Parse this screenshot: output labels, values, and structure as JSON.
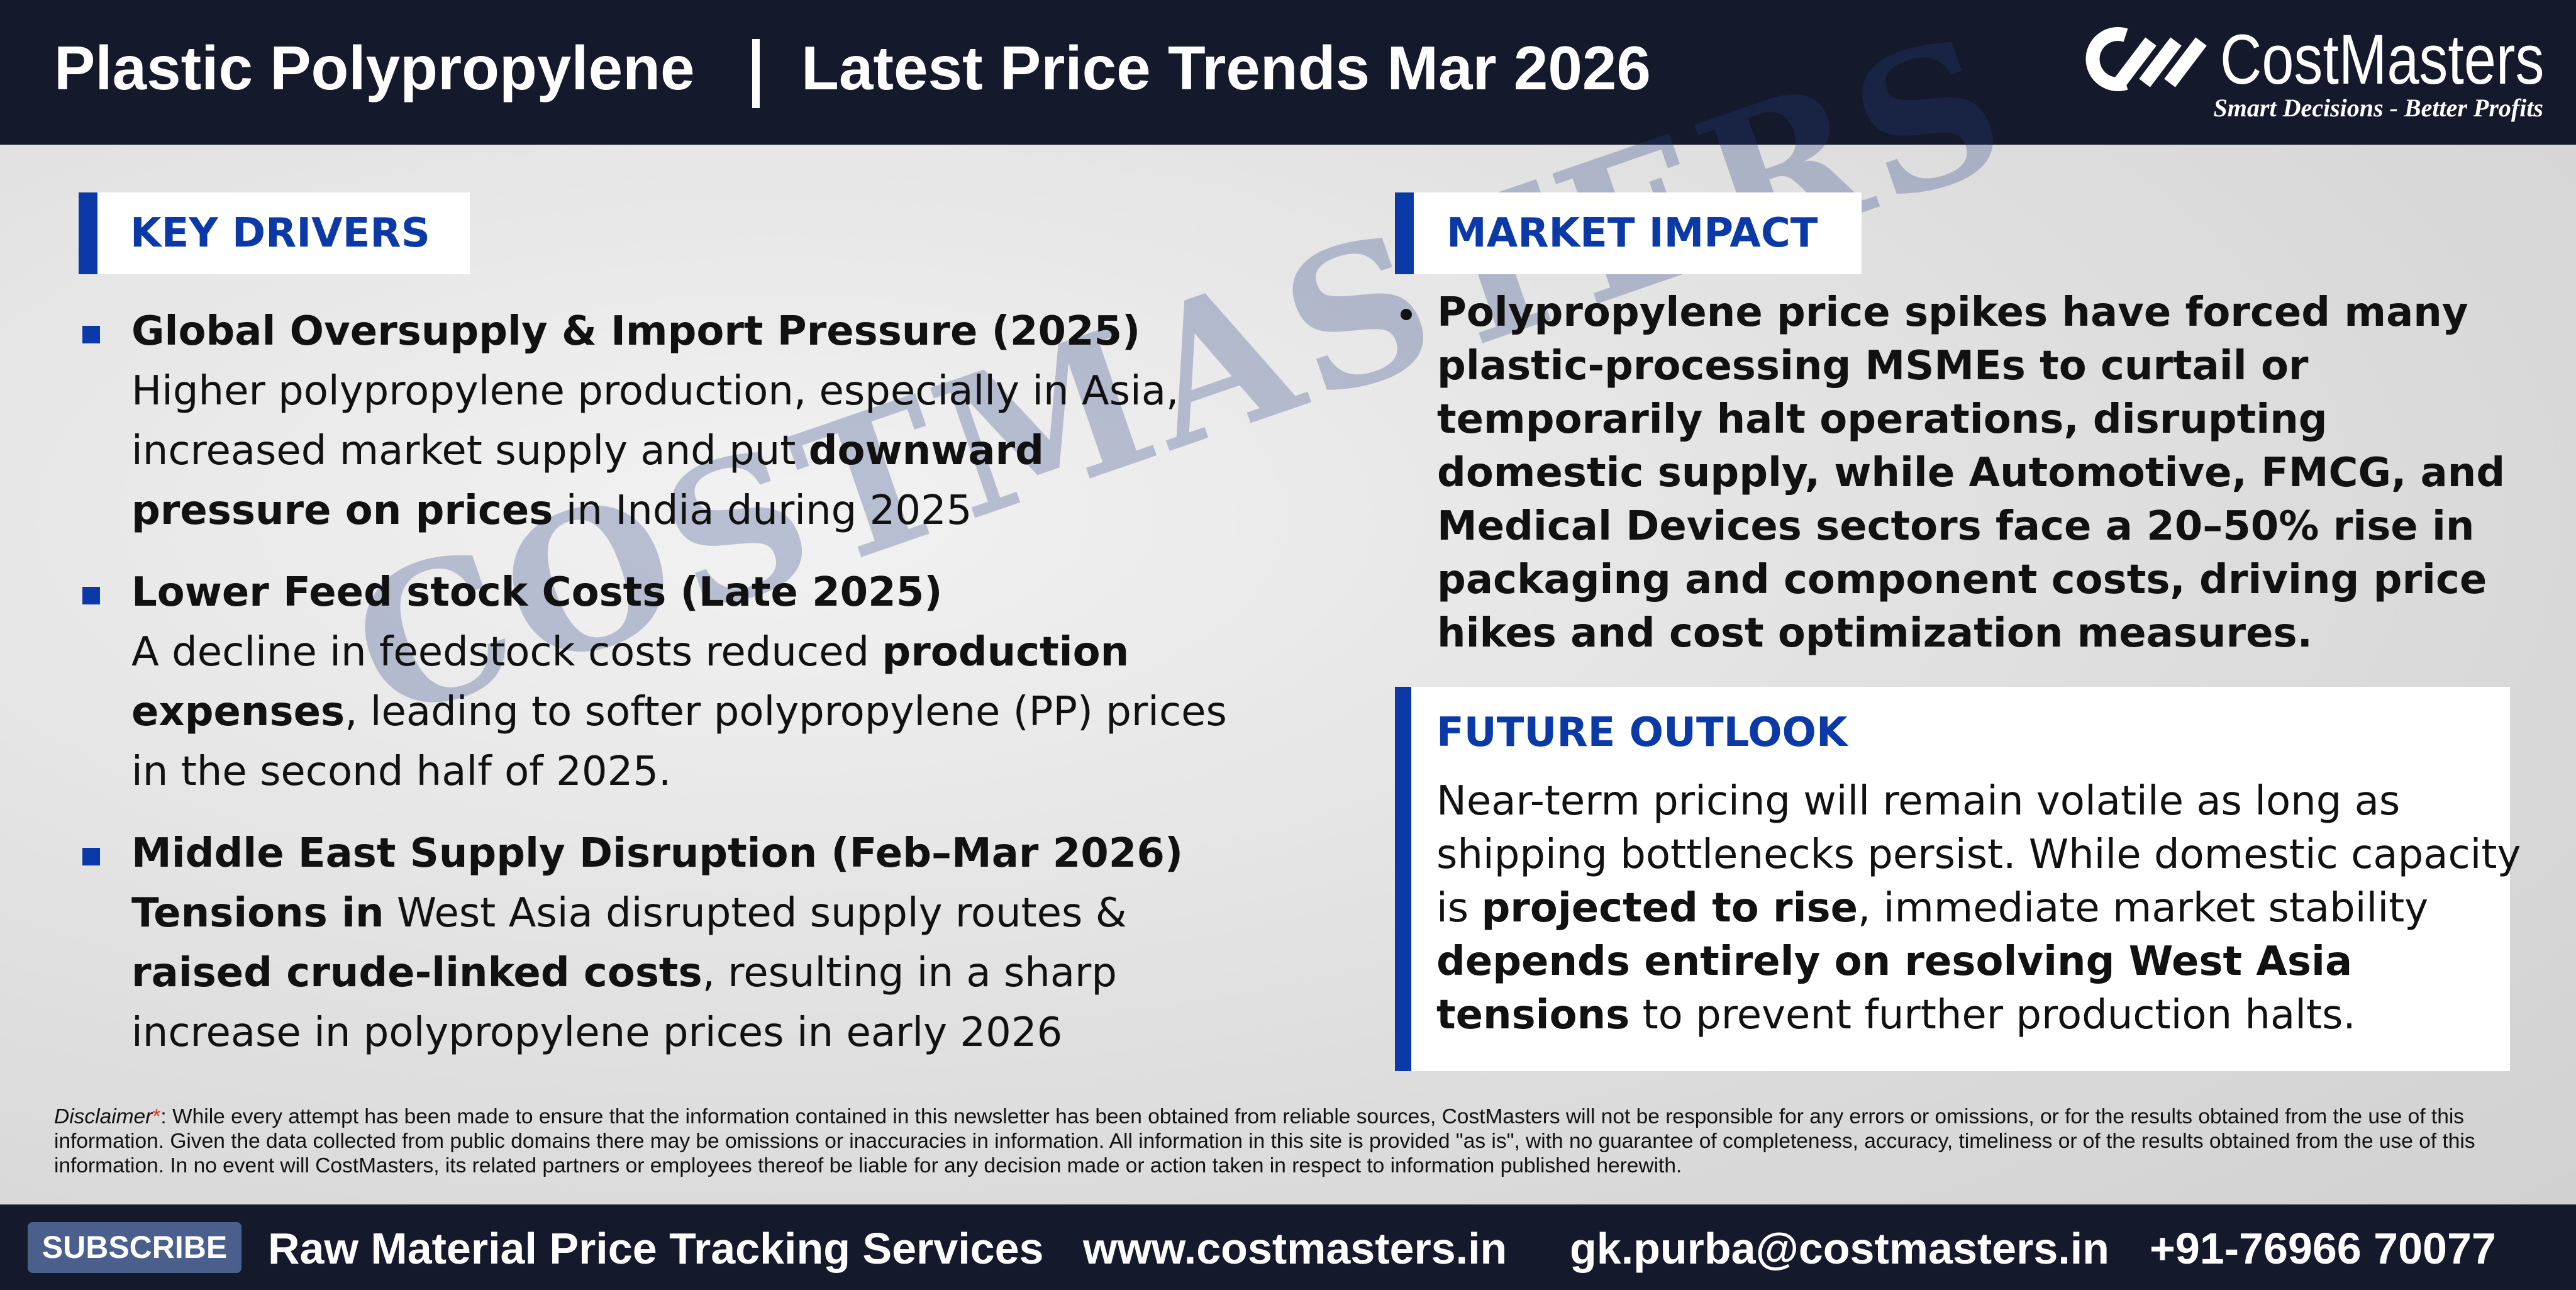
{
  "header": {
    "title_left": "Plastic Polypropylene",
    "title_right": "Latest Price Trends Mar 2026",
    "brand": "CostMasters",
    "tagline": "Smart Decisions - Better Profits"
  },
  "watermark": "COSTMASTERS",
  "key_drivers": {
    "title": "KEY DRIVERS",
    "items": [
      {
        "heading": "Global Oversupply & Import Pressure (2025)",
        "body": [
          {
            "text": "Higher polypropylene production, especially in Asia, increased market supply and put ",
            "bold": false
          },
          {
            "text": "downward pressure on prices",
            "bold": true
          },
          {
            "text": " in India during 2025",
            "bold": false
          }
        ]
      },
      {
        "heading": "Lower Feed stock Costs (Late 2025)",
        "body": [
          {
            "text": "A decline in feedstock costs reduced ",
            "bold": false
          },
          {
            "text": "production expenses",
            "bold": true
          },
          {
            "text": ", leading to softer polypropylene (PP) prices in the second half of 2025.",
            "bold": false
          }
        ]
      },
      {
        "heading": "Middle East Supply Disruption (Feb–Mar 2026)",
        "body": [
          {
            "text": "Tensions in",
            "bold": true
          },
          {
            "text": " West Asia disrupted supply routes & ",
            "bold": false
          },
          {
            "text": "raised crude-linked costs",
            "bold": true
          },
          {
            "text": ", resulting in a sharp increase in polypropylene prices in early 2026",
            "bold": false
          }
        ]
      }
    ]
  },
  "market_impact": {
    "title": "MARKET IMPACT",
    "items": [
      {
        "body": [
          {
            "text": "Polypropylene price spikes have forced many plastic-processing MSMEs to curtail or temporarily halt operations, disrupting domestic supply, while Automotive, FMCG, and Medical Devices sectors face a 20–50% rise in packaging and component costs, driving price hikes and cost optimization measures.",
            "bold": true
          }
        ]
      }
    ]
  },
  "future_outlook": {
    "title": "FUTURE OUTLOOK",
    "body": [
      {
        "text": "Near-term pricing will remain volatile as long as shipping bottlenecks persist. While domestic capacity is ",
        "bold": false
      },
      {
        "text": "projected to rise",
        "bold": true
      },
      {
        "text": ", immediate market stability ",
        "bold": false
      },
      {
        "text": "depends entirely on resolving West Asia tensions",
        "bold": true
      },
      {
        "text": " to prevent further production halts.",
        "bold": false
      }
    ]
  },
  "disclaimer": {
    "label": "Disclaimer",
    "mark": "*",
    "text": ": While every attempt has been made to ensure that the information contained in this newsletter has been obtained from reliable sources, CostMasters will not be responsible for any errors or omissions, or for the results obtained from the use of this information. Given the data collected from public domains there may be omissions or inaccuracies in information. All information in this site is provided \"as is\", with no guarantee of completeness, accuracy, timeliness or of the results obtained from the use of this information. In no event will CostMasters, its related partners or employees thereof be liable for any decision made or action taken in respect to information published herewith."
  },
  "footer": {
    "subscribe": "SUBSCRIBE",
    "service": "Raw Material Price Tracking Services",
    "website": "www.costmasters.in",
    "email": "gk.purba@costmasters.in",
    "phone": "+91-76966 70077"
  }
}
